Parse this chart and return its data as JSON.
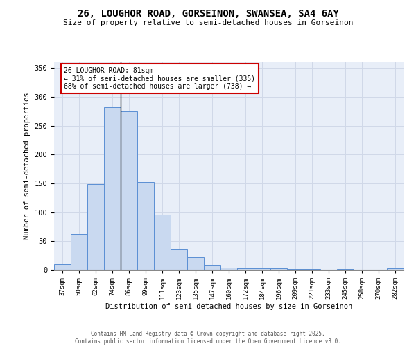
{
  "title_line1": "26, LOUGHOR ROAD, GORSEINON, SWANSEA, SA4 6AY",
  "title_line2": "Size of property relative to semi-detached houses in Gorseinon",
  "xlabel": "Distribution of semi-detached houses by size in Gorseinon",
  "ylabel": "Number of semi-detached properties",
  "categories": [
    "37sqm",
    "50sqm",
    "62sqm",
    "74sqm",
    "86sqm",
    "99sqm",
    "111sqm",
    "123sqm",
    "135sqm",
    "147sqm",
    "160sqm",
    "172sqm",
    "184sqm",
    "196sqm",
    "209sqm",
    "221sqm",
    "233sqm",
    "245sqm",
    "258sqm",
    "270sqm",
    "282sqm"
  ],
  "values": [
    10,
    63,
    149,
    282,
    275,
    152,
    96,
    36,
    22,
    8,
    4,
    3,
    3,
    2,
    1,
    1,
    0,
    1,
    0,
    0,
    2
  ],
  "bar_color": "#c9d9f0",
  "bar_edge_color": "#5b8fd4",
  "marker_bin_index": 4,
  "marker_label": "26 LOUGHOR ROAD: 81sqm",
  "arrow_left_text": "← 31% of semi-detached houses are smaller (335)",
  "arrow_right_text": "68% of semi-detached houses are larger (738) →",
  "annotation_box_color": "#ffffff",
  "annotation_box_edge": "#cc0000",
  "vline_color": "#000000",
  "grid_color": "#d0d8e8",
  "background_color": "#e8eef8",
  "footer_line1": "Contains HM Land Registry data © Crown copyright and database right 2025.",
  "footer_line2": "Contains public sector information licensed under the Open Government Licence v3.0.",
  "ylim": [
    0,
    360
  ],
  "yticks": [
    0,
    50,
    100,
    150,
    200,
    250,
    300,
    350
  ]
}
